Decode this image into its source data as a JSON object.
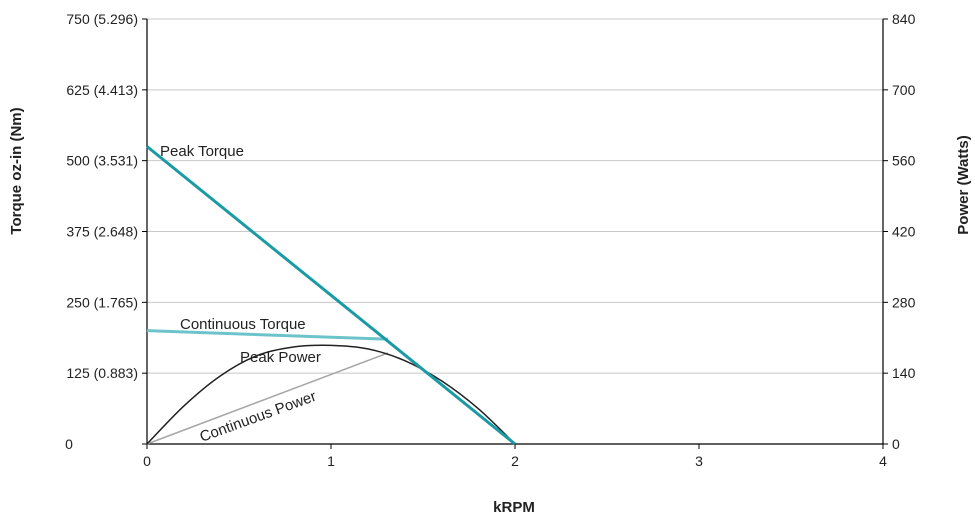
{
  "chart_data": {
    "type": "line",
    "xlabel": "kRPM",
    "ylabel_left": "Torque oz-in (Nm)",
    "ylabel_right": "Power (Watts)",
    "x_ticks": [
      "0",
      "1",
      "2",
      "3",
      "4"
    ],
    "y_left_ticks": [
      "0",
      "125 (0.883)",
      "250 (1.765)",
      "375 (2.648)",
      "500 (3.531)",
      "625 (4.413)",
      "750 (5.296)"
    ],
    "y_right_ticks": [
      "0",
      "140",
      "280",
      "420",
      "560",
      "700",
      "840"
    ],
    "xlim": [
      0,
      4
    ],
    "ylim_left": [
      0,
      750
    ],
    "ylim_right": [
      0,
      840
    ],
    "grid": "horizontal",
    "series": [
      {
        "name": "Peak Torque",
        "axis": "left",
        "color": "#1a9aa5",
        "x": [
          0,
          2
        ],
        "y": [
          525,
          0
        ]
      },
      {
        "name": "Continuous Torque",
        "axis": "left",
        "color": "#6cc4ca",
        "x": [
          0,
          1.31
        ],
        "y": [
          200,
          185
        ]
      },
      {
        "name": "Peak Power",
        "axis": "right",
        "color": "#222222",
        "x": [
          0,
          0.2,
          0.4,
          0.6,
          0.8,
          1.0,
          1.2,
          1.4,
          1.6,
          1.8,
          2.0
        ],
        "y": [
          0,
          75,
          135,
          175,
          192,
          195,
          188,
          165,
          125,
          70,
          0
        ]
      },
      {
        "name": "Continuous Power",
        "axis": "right",
        "color": "#a6a6a6",
        "x": [
          0,
          1.31
        ],
        "y": [
          0,
          180
        ]
      }
    ],
    "annotations": [
      {
        "text": "Peak Torque",
        "series": "Peak Torque"
      },
      {
        "text": "Continuous Torque",
        "series": "Continuous Torque"
      },
      {
        "text": "Peak Power",
        "series": "Peak Power"
      },
      {
        "text": "Continuous Power",
        "series": "Continuous Power"
      }
    ]
  }
}
